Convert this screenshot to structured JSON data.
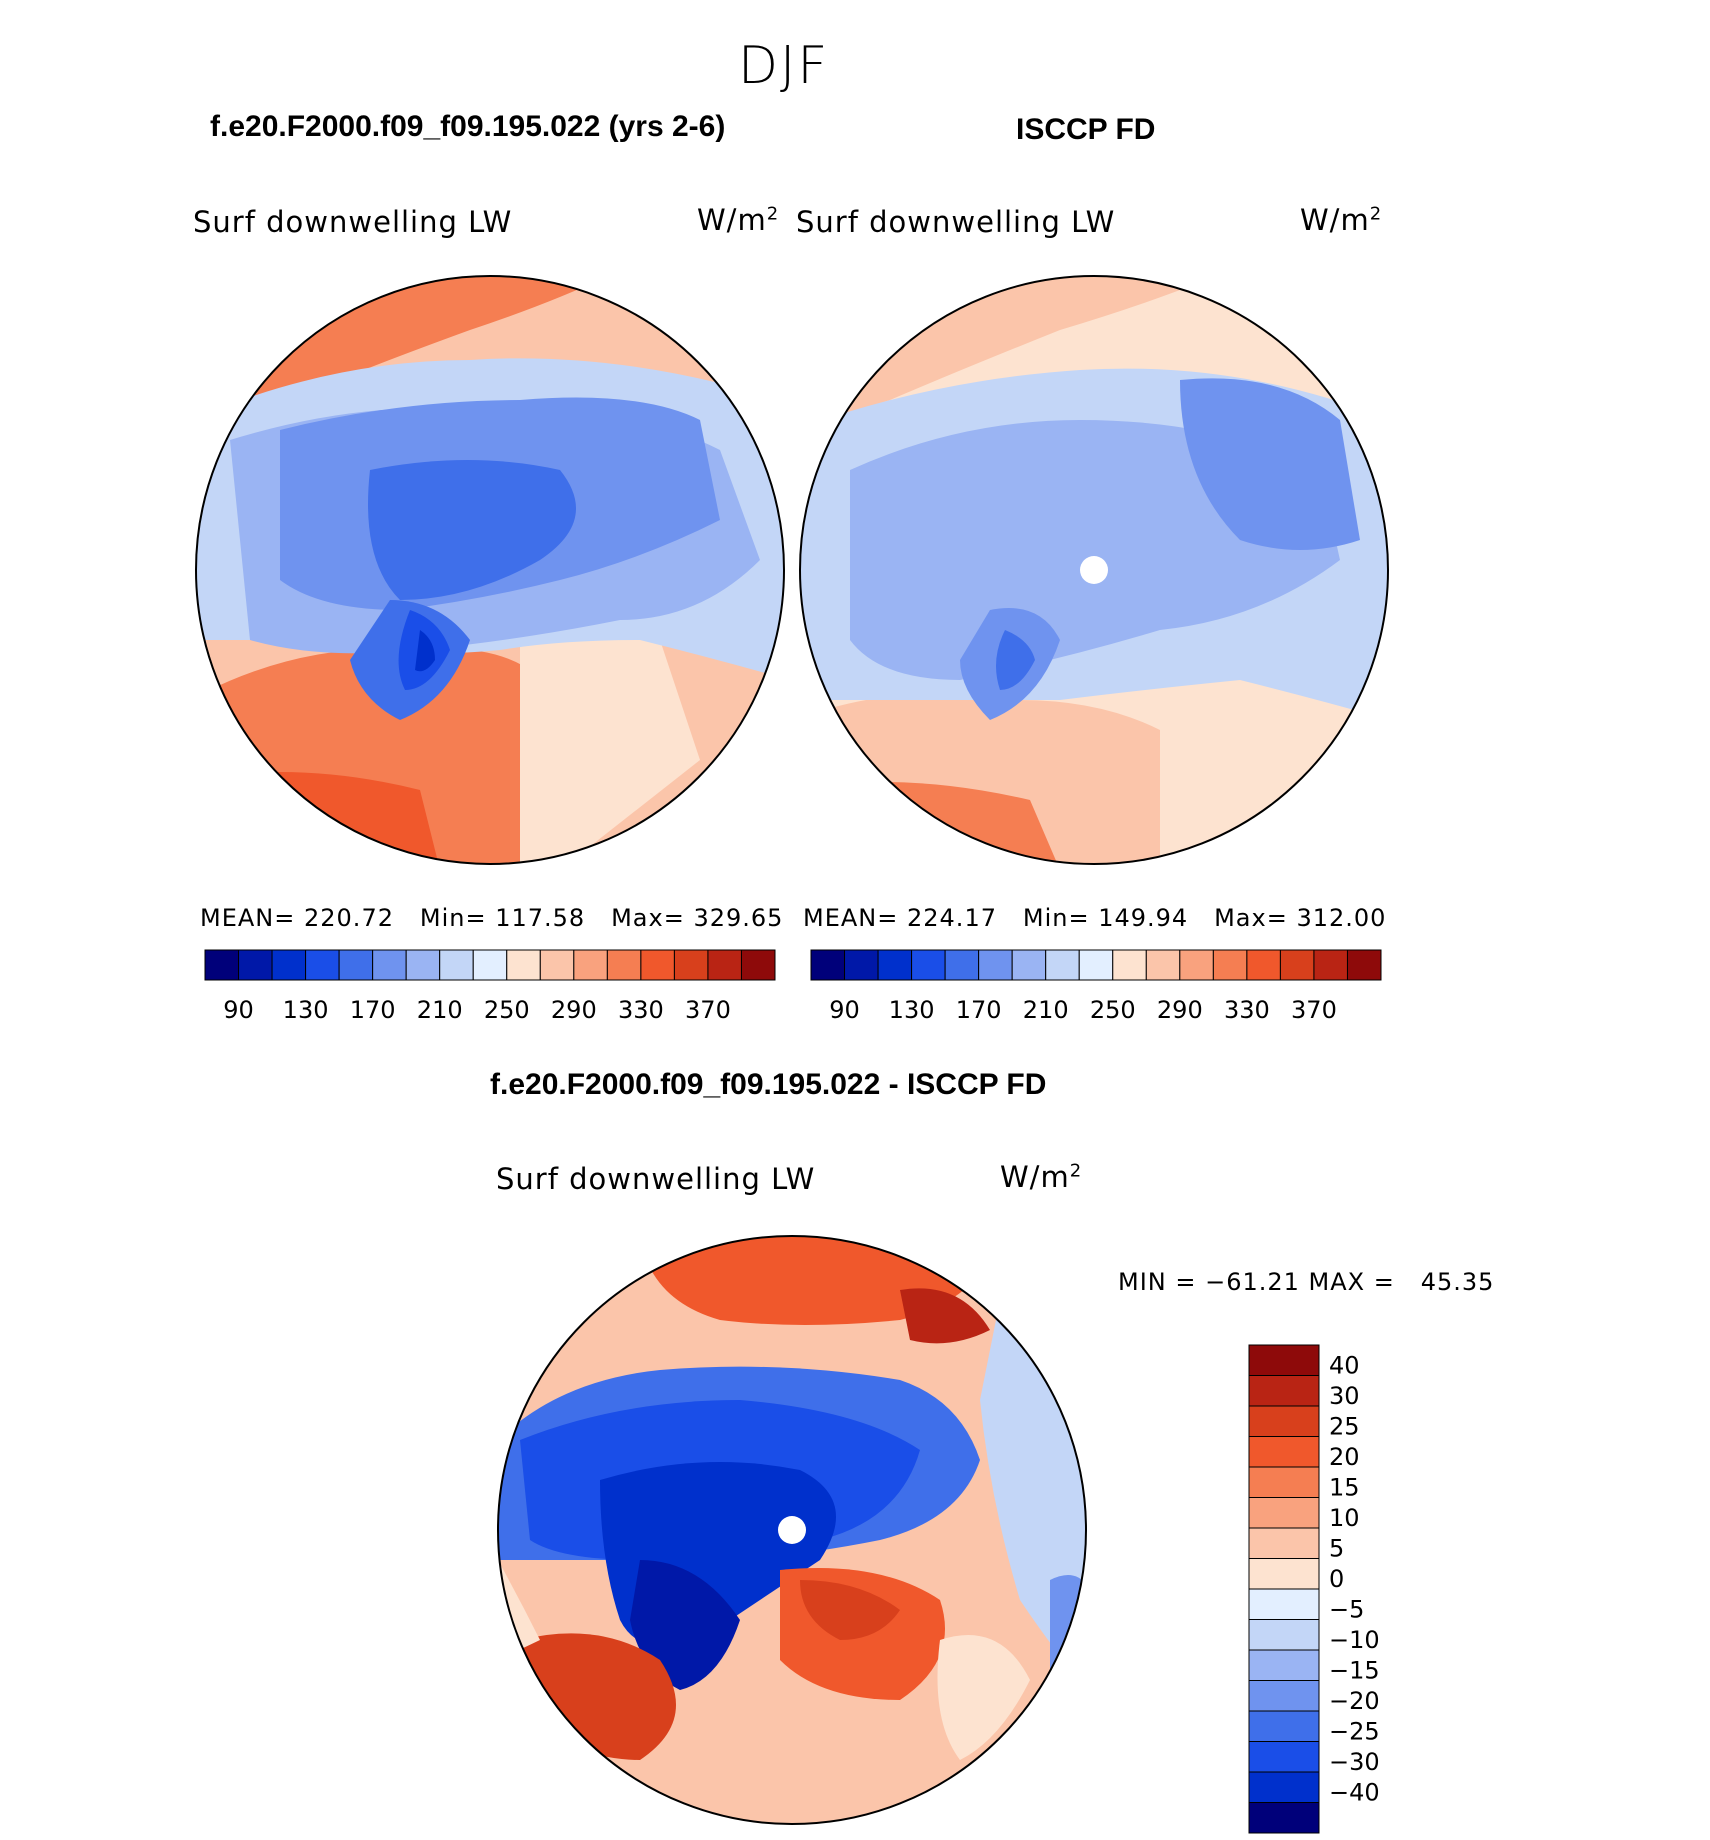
{
  "season_title": "DJF",
  "panels": [
    {
      "title": "f.e20.F2000.f09_f09.195.022 (yrs 2-6)",
      "variable": "Surf downwelling LW",
      "units": "W/m",
      "units_sup": "2",
      "stats": {
        "mean_label": "MEAN=",
        "mean": "220.72",
        "min_label": "Min=",
        "min": "117.58",
        "max_label": "Max=",
        "max": "329.65"
      }
    },
    {
      "title": "ISCCP FD",
      "variable": "Surf downwelling LW",
      "units": "W/m",
      "units_sup": "2",
      "stats": {
        "mean_label": "MEAN=",
        "mean": "224.17",
        "min_label": "Min=",
        "min": "149.94",
        "max_label": "Max=",
        "max": "312.00"
      }
    }
  ],
  "diff_panel": {
    "title": "f.e20.F2000.f09_f09.195.022 - ISCCP FD",
    "variable": "Surf downwelling LW",
    "units": "W/m",
    "units_sup": "2",
    "minmax": "MIN = −61.21 MAX =   45.35"
  },
  "chart_data": [
    {
      "type": "heatmap",
      "projection": "north polar stereographic",
      "colorbar": {
        "orientation": "horizontal",
        "tick_labels": [
          "90",
          "130",
          "170",
          "210",
          "250",
          "290",
          "330",
          "370"
        ],
        "colors": [
          "#00007a",
          "#0018a8",
          "#0030cc",
          "#1a4ee8",
          "#3f6fea",
          "#6f93ef",
          "#9ab4f3",
          "#c3d6f7",
          "#e3efff",
          "#fde3d0",
          "#fbc5aa",
          "#f9a27e",
          "#f57e52",
          "#f0582c",
          "#d8401c",
          "#b92414",
          "#8e0a0a"
        ]
      }
    },
    {
      "type": "heatmap",
      "projection": "north polar stereographic",
      "colorbar": {
        "orientation": "horizontal",
        "tick_labels": [
          "90",
          "130",
          "170",
          "210",
          "250",
          "290",
          "330",
          "370"
        ],
        "colors": [
          "#00007a",
          "#0018a8",
          "#0030cc",
          "#1a4ee8",
          "#3f6fea",
          "#6f93ef",
          "#9ab4f3",
          "#c3d6f7",
          "#e3efff",
          "#fde3d0",
          "#fbc5aa",
          "#f9a27e",
          "#f57e52",
          "#f0582c",
          "#d8401c",
          "#b92414",
          "#8e0a0a"
        ]
      }
    },
    {
      "type": "heatmap",
      "projection": "north polar stereographic",
      "colorbar": {
        "orientation": "vertical",
        "tick_labels": [
          "40",
          "30",
          "25",
          "20",
          "15",
          "10",
          "5",
          "0",
          "−5",
          "−10",
          "−15",
          "−20",
          "−25",
          "−30",
          "−40"
        ],
        "colors": [
          "#8e0a0a",
          "#b92414",
          "#d8401c",
          "#f0582c",
          "#f57e52",
          "#f9a27e",
          "#fbc5aa",
          "#fde3d0",
          "#e3efff",
          "#c3d6f7",
          "#9ab4f3",
          "#6f93ef",
          "#3f6fea",
          "#1a4ee8",
          "#0030cc",
          "#00007a"
        ]
      }
    }
  ]
}
